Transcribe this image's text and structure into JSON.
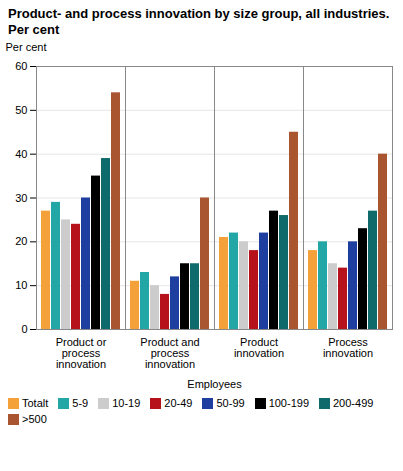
{
  "chart_data": {
    "type": "bar",
    "title": "Product- and process innovation by size group, all industries. Per cent",
    "y_label": "Per cent",
    "x_label": "Employees",
    "categories": [
      "Product or process innovation",
      "Product and process innovation",
      "Product innovation",
      "Process innovation"
    ],
    "series": [
      {
        "name": "Totalt",
        "color": "#f5a13a",
        "values": [
          27,
          11,
          21,
          18
        ]
      },
      {
        "name": "5-9",
        "color": "#22a6a6",
        "values": [
          29,
          13,
          22,
          20
        ]
      },
      {
        "name": "10-19",
        "color": "#cccccc",
        "values": [
          25,
          10,
          20,
          15
        ]
      },
      {
        "name": "20-49",
        "color": "#b5121b",
        "values": [
          24,
          8,
          18,
          14
        ]
      },
      {
        "name": "50-99",
        "color": "#1f3fa0",
        "values": [
          30,
          12,
          22,
          20
        ]
      },
      {
        "name": "100-199",
        "color": "#000000",
        "values": [
          35,
          15,
          27,
          23
        ]
      },
      {
        "name": "200-499",
        "color": "#0f6b6b",
        "values": [
          39,
          15,
          26,
          27
        ]
      },
      {
        "name": ">500",
        "color": "#a9552f",
        "values": [
          54,
          30,
          45,
          40
        ]
      }
    ],
    "ylim": [
      0,
      60
    ],
    "yticks": [
      0,
      10,
      20,
      30,
      40,
      50,
      60
    ],
    "grid": true,
    "legend": "bottom"
  }
}
